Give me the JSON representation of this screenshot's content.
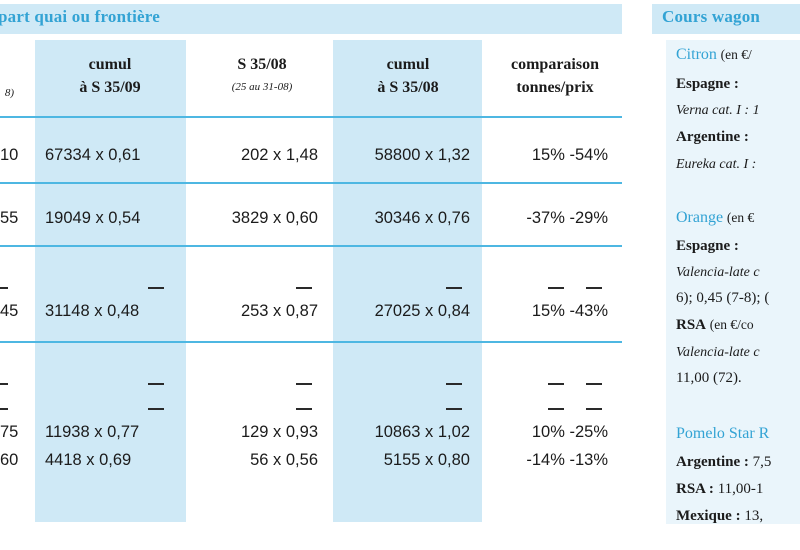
{
  "main": {
    "title": "part quai ou frontière",
    "headers": {
      "col0_sub": "8)",
      "col1": [
        "cumul",
        "à S 35/09"
      ],
      "col2": [
        "S 35/08"
      ],
      "col2_sub": "(25 au 31-08)",
      "col3": [
        "cumul",
        "à S 35/08"
      ],
      "col4": [
        "comparaison",
        "tonnes/prix"
      ]
    },
    "rows": [
      {
        "c0": "10",
        "c1": "67334 x 0,61",
        "c2": "202 x 1,48",
        "c3": "58800 x 1,32",
        "c4": "15%  -54%"
      },
      {
        "c0": "55",
        "c1": "19049 x 0,54",
        "c2": "3829 x 0,60",
        "c3": "30346 x 0,76",
        "c4": "-37%  -29%"
      },
      {
        "c0": "45",
        "c1": "31148 x 0,48",
        "c2": "253 x 0,87",
        "c3": "27025 x 0,84",
        "c4": "15%  -43%"
      },
      {
        "c0": "75",
        "c1": "11938 x 0,77",
        "c2": "129 x 0,93",
        "c3": "10863 x 1,02",
        "c4": "10%  -25%"
      },
      {
        "c0": "60",
        "c1": "4418 x 0,69",
        "c2": "56 x 0,56",
        "c3": "5155 x 0,80",
        "c4": "-14%  -13%"
      }
    ],
    "dash": "—"
  },
  "side": {
    "title": "Cours wagon",
    "citron": "Citron",
    "citron_unit": "(en €/",
    "espagne": "Espagne :",
    "verna": "Verna cat. I : 1",
    "argentine": "Argentine :",
    "eureka": "Eureka cat. I :",
    "orange": "Orange",
    "orange_unit": "(en €",
    "espagne2": "Espagne :",
    "valencia1": "Valencia-late c",
    "valencia2": "6); 0,45 (7-8); (",
    "rsa": "RSA",
    "rsa_unit": "(en €/co",
    "valencia3": "Valencia-late   c",
    "valencia4": "11,00 (72).",
    "pomelo": "Pomelo Star R",
    "argentine2": "Argentine :",
    "argentine2_val": " 7,5",
    "rsa2": "RSA :",
    "rsa2_val": " 11,00-1",
    "mexique": "Mexique :",
    "mexique_val": " 13,"
  },
  "colors": {
    "accent": "#33a3d4",
    "band": "#cfe9f6",
    "rule": "#4eb7e2"
  }
}
